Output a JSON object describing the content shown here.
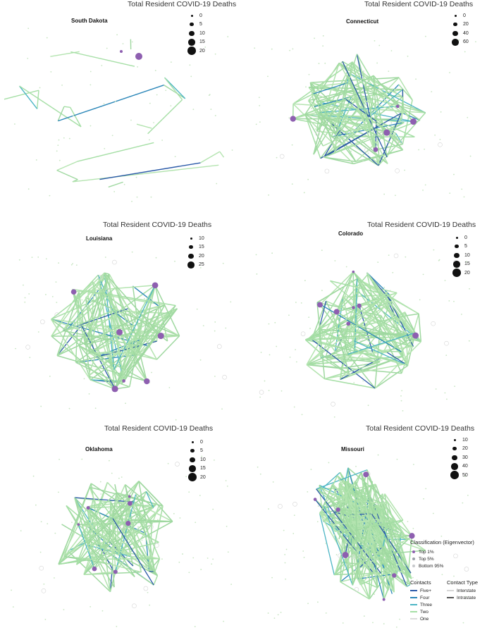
{
  "size_legend_title": "Total Resident COVID-19 Deaths",
  "panels": [
    {
      "state": "South Dakota",
      "sizes": [
        "0",
        "5",
        "10",
        "15",
        "20"
      ]
    },
    {
      "state": "Connecticut",
      "sizes": [
        "0",
        "20",
        "40",
        "60"
      ]
    },
    {
      "state": "Louisiana",
      "sizes": [
        "10",
        "15",
        "20",
        "25"
      ]
    },
    {
      "state": "Colorado",
      "sizes": [
        "0",
        "5",
        "10",
        "15",
        "20"
      ]
    },
    {
      "state": "Oklahoma",
      "sizes": [
        "0",
        "5",
        "10",
        "15",
        "20"
      ]
    },
    {
      "state": "Missouri",
      "sizes": [
        "10",
        "20",
        "30",
        "40",
        "50"
      ]
    }
  ],
  "legend": {
    "classification_title": "Classification (Eigenvector)",
    "classes": [
      "Top 1%",
      "Top 5%",
      "Bottom 95%"
    ],
    "class_colors": [
      "#8e5fb0",
      "#9aa0a8",
      "#c7c9cc"
    ],
    "contacts_title": "Contacts",
    "contacts": [
      "Five+",
      "Four",
      "Three",
      "Two",
      "One"
    ],
    "contact_colors": [
      "#2b5aa8",
      "#2a86b8",
      "#4cb5c4",
      "#a6dfa6",
      "#dcdcdc"
    ],
    "contact_type_title": "Contact Type",
    "contact_types": [
      "Interstate",
      "Intrastate"
    ],
    "contact_type_colors": [
      "#d6d6d6",
      "#555555"
    ]
  }
}
